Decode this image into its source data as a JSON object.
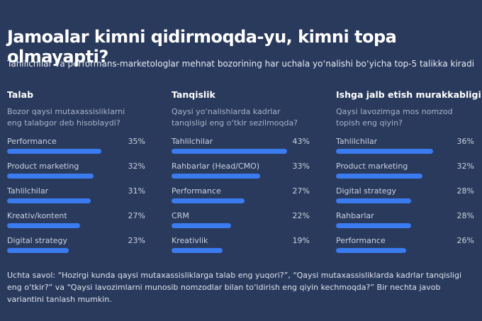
{
  "title": "Jamoalar kimni qidirmoqda-yu, kimni topa olmayapti?",
  "subtitle": "Tahlilchilar va performans-marketologlar mehnat bozorining har uchala yo‘nalishi bo‘yicha top-5 talikka kiradi",
  "footnote": "Uchta savol: “Hozirgi kunda qaysi mutaxassisliklarga talab eng yuqori?”, “Qaysi mutaxassisliklarda kadrlar tanqisligi eng o‘tkir?” va “Qaysi lavozimlarni munosib nomzodlar bilan to‘ldirish eng qiyin kechmoqda?” Bir nechta javob variantini tanlash mumkin.",
  "chart_data": [
    {
      "type": "bar",
      "title": "Talab",
      "subtitle": "Bozor qaysi mutaxassisliklarni eng talabgor deb hisoblaydi?",
      "categories": [
        "Performance",
        "Product marketing",
        "Tahlilchilar",
        "Kreativ/kontent",
        "Digital strategy"
      ],
      "values": [
        35,
        32,
        31,
        27,
        23
      ],
      "value_labels": [
        "35%",
        "32%",
        "31%",
        "27%",
        "23%"
      ],
      "color": "#3a7bf0"
    },
    {
      "type": "bar",
      "title": "Tanqislik",
      "subtitle": "Qaysi yo‘nalishlarda kadrlar tanqisligi eng o‘tkir sezilmoqda?",
      "categories": [
        "Tahlilchilar",
        "Rahbarlar (Head/CMO)",
        "Performance",
        "CRM",
        "Kreativlik"
      ],
      "values": [
        43,
        33,
        27,
        22,
        19
      ],
      "value_labels": [
        "43%",
        "33%",
        "27%",
        "22%",
        "19%"
      ],
      "color": "#3a7bf0"
    },
    {
      "type": "bar",
      "title": "Ishga jalb etish murakkabligi",
      "subtitle": "Qaysi lavozimga mos nomzod topish eng qiyin?",
      "categories": [
        "Tahlilchilar",
        "Product marketing",
        "Digital strategy",
        "Rahbarlar",
        "Performance"
      ],
      "values": [
        36,
        32,
        28,
        28,
        26
      ],
      "value_labels": [
        "36%",
        "32%",
        "28%",
        "28%",
        "26%"
      ],
      "color": "#3a7bf0"
    }
  ]
}
